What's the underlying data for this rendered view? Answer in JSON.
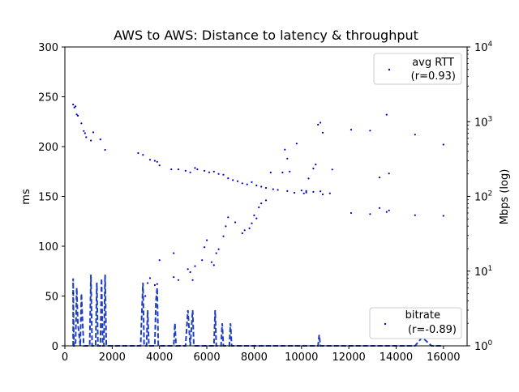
{
  "chart_data": {
    "type": "scatter",
    "title": "AWS to AWS: Distance to latency & throughput",
    "xlabel": "",
    "ylabel": "ms",
    "y2label": "Mbps (log)",
    "xlim": [
      0,
      17000
    ],
    "ylim": [
      0,
      300
    ],
    "y2lim": [
      1,
      10000
    ],
    "y2scale": "log",
    "x_ticks": [
      0,
      2000,
      4000,
      6000,
      8000,
      10000,
      12000,
      14000,
      16000
    ],
    "x_tick_labels": [
      "0",
      "2000",
      "4000",
      "6000",
      "8000",
      "10000",
      "12000",
      "14000",
      "16000"
    ],
    "y_ticks": [
      0,
      50,
      100,
      150,
      200,
      250,
      300
    ],
    "y_tick_labels": [
      "0",
      "50",
      "100",
      "150",
      "200",
      "250",
      "300"
    ],
    "y2_ticks": [
      1,
      10,
      100,
      1000,
      10000
    ],
    "y2_tick_labels": [
      "10^0",
      "10^1",
      "10^2",
      "10^3",
      "10^4"
    ],
    "grid": false,
    "colors": {
      "series": "#0000cc",
      "line": "#1f3fbf"
    },
    "legends": [
      {
        "placement": "top-right",
        "label_line1": "avg RTT",
        "label_line2": "(r=0.93)"
      },
      {
        "placement": "bottom-right",
        "label_line1": "bitrate",
        "label_line2": "(r=-0.89)"
      }
    ],
    "series": [
      {
        "name": "avg RTT",
        "axis": "left",
        "marker": "dot",
        "points": [
          [
            350,
            53
          ],
          [
            3400,
            50
          ],
          [
            3500,
            63
          ],
          [
            3600,
            68
          ],
          [
            3800,
            61
          ],
          [
            3900,
            62
          ],
          [
            4000,
            86
          ],
          [
            4600,
            69
          ],
          [
            4600,
            93
          ],
          [
            4800,
            66
          ],
          [
            5200,
            77
          ],
          [
            5300,
            74
          ],
          [
            5400,
            66
          ],
          [
            5500,
            80
          ],
          [
            5800,
            86
          ],
          [
            5900,
            99
          ],
          [
            6000,
            106
          ],
          [
            6200,
            84
          ],
          [
            6300,
            81
          ],
          [
            6400,
            93
          ],
          [
            6500,
            97
          ],
          [
            6700,
            110
          ],
          [
            6800,
            120
          ],
          [
            6900,
            129
          ],
          [
            7200,
            124
          ],
          [
            7500,
            113
          ],
          [
            7600,
            116
          ],
          [
            7800,
            118
          ],
          [
            7900,
            123
          ],
          [
            8000,
            131
          ],
          [
            8100,
            128
          ],
          [
            8200,
            139
          ],
          [
            8300,
            143
          ],
          [
            8500,
            146
          ],
          [
            8700,
            174
          ],
          [
            9200,
            174
          ],
          [
            9300,
            197
          ],
          [
            9400,
            188
          ],
          [
            9500,
            175
          ],
          [
            9800,
            203
          ],
          [
            10100,
            153
          ],
          [
            10200,
            154
          ],
          [
            10300,
            168
          ],
          [
            10500,
            178
          ],
          [
            10600,
            182
          ],
          [
            10700,
            222
          ],
          [
            10800,
            224
          ],
          [
            10900,
            214
          ],
          [
            10900,
            152
          ],
          [
            11300,
            177
          ],
          [
            12100,
            217
          ],
          [
            12900,
            216
          ],
          [
            13300,
            169
          ],
          [
            13600,
            232
          ],
          [
            13700,
            173
          ],
          [
            14800,
            212
          ],
          [
            16000,
            202
          ]
        ]
      },
      {
        "name": "bitrate",
        "axis": "right",
        "marker": "dot",
        "points": [
          [
            350,
            1700
          ],
          [
            400,
            1550
          ],
          [
            450,
            1600
          ],
          [
            500,
            1250
          ],
          [
            550,
            1200
          ],
          [
            700,
            950
          ],
          [
            800,
            750
          ],
          [
            850,
            700
          ],
          [
            900,
            620
          ],
          [
            1100,
            560
          ],
          [
            1200,
            720
          ],
          [
            1500,
            580
          ],
          [
            1700,
            420
          ],
          [
            3100,
            380
          ],
          [
            3300,
            360
          ],
          [
            3600,
            310
          ],
          [
            3800,
            300
          ],
          [
            3900,
            290
          ],
          [
            4000,
            260
          ],
          [
            4500,
            230
          ],
          [
            4800,
            230
          ],
          [
            5100,
            220
          ],
          [
            5300,
            210
          ],
          [
            5500,
            240
          ],
          [
            5600,
            230
          ],
          [
            5900,
            220
          ],
          [
            6100,
            210
          ],
          [
            6300,
            215
          ],
          [
            6500,
            200
          ],
          [
            6700,
            195
          ],
          [
            6900,
            175
          ],
          [
            7100,
            165
          ],
          [
            7300,
            160
          ],
          [
            7500,
            150
          ],
          [
            7700,
            145
          ],
          [
            7900,
            155
          ],
          [
            8100,
            140
          ],
          [
            8300,
            135
          ],
          [
            8500,
            130
          ],
          [
            8800,
            125
          ],
          [
            9000,
            122
          ],
          [
            9400,
            118
          ],
          [
            9700,
            112
          ],
          [
            10000,
            120
          ],
          [
            10200,
            118
          ],
          [
            10500,
            115
          ],
          [
            10800,
            117
          ],
          [
            11200,
            110
          ],
          [
            12100,
            60
          ],
          [
            12900,
            58
          ],
          [
            13300,
            70
          ],
          [
            13600,
            62
          ],
          [
            13700,
            65
          ],
          [
            14800,
            56
          ],
          [
            16000,
            55
          ]
        ]
      }
    ],
    "bitrate_line": [
      [
        350,
        1
      ],
      [
        350,
        8
      ],
      [
        380,
        1
      ],
      [
        450,
        1
      ],
      [
        500,
        6
      ],
      [
        550,
        2
      ],
      [
        650,
        1
      ],
      [
        700,
        5
      ],
      [
        750,
        2
      ],
      [
        800,
        1
      ],
      [
        1050,
        1
      ],
      [
        1100,
        9
      ],
      [
        1150,
        1
      ],
      [
        1300,
        1
      ],
      [
        1350,
        7
      ],
      [
        1400,
        1
      ],
      [
        1500,
        1
      ],
      [
        1550,
        8
      ],
      [
        1600,
        1
      ],
      [
        1650,
        1
      ],
      [
        1700,
        9
      ],
      [
        1750,
        1
      ],
      [
        3200,
        1
      ],
      [
        3300,
        7
      ],
      [
        3350,
        1
      ],
      [
        3450,
        1
      ],
      [
        3500,
        3
      ],
      [
        3550,
        1
      ],
      [
        3800,
        1
      ],
      [
        3850,
        4
      ],
      [
        3900,
        6
      ],
      [
        3950,
        1
      ],
      [
        4600,
        1
      ],
      [
        4650,
        2
      ],
      [
        4700,
        1
      ],
      [
        5100,
        1
      ],
      [
        5200,
        3
      ],
      [
        5300,
        1
      ],
      [
        5400,
        3
      ],
      [
        5450,
        1
      ],
      [
        6300,
        1
      ],
      [
        6350,
        3
      ],
      [
        6400,
        1
      ],
      [
        6600,
        1
      ],
      [
        6650,
        2
      ],
      [
        6700,
        1
      ],
      [
        6950,
        1
      ],
      [
        7000,
        2
      ],
      [
        7050,
        1
      ],
      [
        10700,
        1
      ],
      [
        10750,
        1.4
      ],
      [
        10800,
        1
      ],
      [
        14800,
        1
      ],
      [
        15100,
        1.3
      ],
      [
        15500,
        1
      ],
      [
        16000,
        1
      ]
    ]
  }
}
